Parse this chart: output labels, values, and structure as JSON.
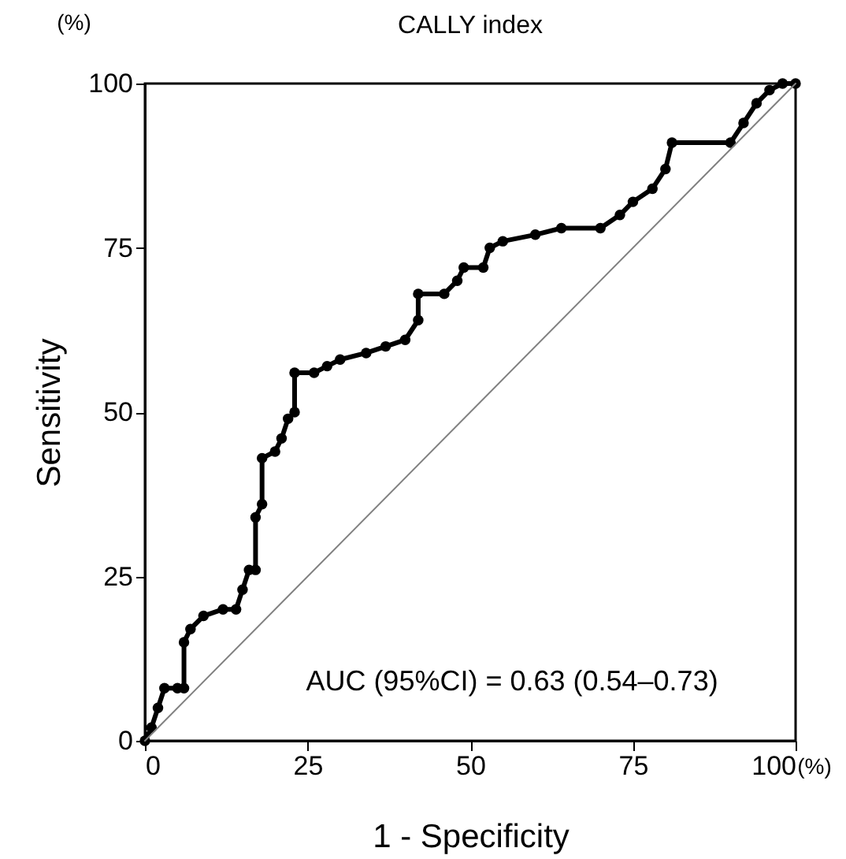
{
  "chart_data": {
    "type": "line",
    "title": "CALLY index",
    "xlabel": "1 - Specificity",
    "ylabel": "Sensitivity",
    "xlim": [
      0,
      100
    ],
    "ylim": [
      0,
      100
    ],
    "xticks": [
      0,
      25,
      50,
      75,
      100
    ],
    "yticks": [
      0,
      25,
      50,
      75,
      100
    ],
    "grid": false,
    "annotations": [
      "(%)",
      "(%)",
      "AUC (95%CI) = 0.63 (0.54–0.73)"
    ],
    "series": [
      {
        "color": "#000000",
        "marker": "circle",
        "line_style": "solid",
        "x": [
          0,
          1,
          2,
          3,
          5,
          6,
          6,
          7,
          9,
          12,
          14,
          15,
          16,
          17,
          17,
          18,
          18,
          20,
          21,
          22,
          23,
          23,
          26,
          28,
          30,
          34,
          37,
          40,
          42,
          42,
          46,
          48,
          49,
          52,
          53,
          55,
          60,
          64,
          70,
          73,
          75,
          78,
          80,
          81,
          90,
          92,
          94,
          96,
          98,
          100
        ],
        "values": [
          0,
          2,
          5,
          8,
          8,
          8,
          15,
          17,
          19,
          20,
          20,
          23,
          26,
          26,
          34,
          36,
          43,
          44,
          46,
          49,
          50,
          56,
          56,
          57,
          58,
          59,
          60,
          61,
          64,
          68,
          68,
          70,
          72,
          72,
          75,
          76,
          77,
          78,
          78,
          80,
          82,
          84,
          87,
          91,
          91,
          94,
          97,
          99,
          100,
          100
        ]
      },
      {
        "color": "#808080",
        "marker": "none",
        "line_style": "solid",
        "x": [
          0,
          100
        ],
        "values": [
          0,
          100
        ]
      }
    ]
  }
}
